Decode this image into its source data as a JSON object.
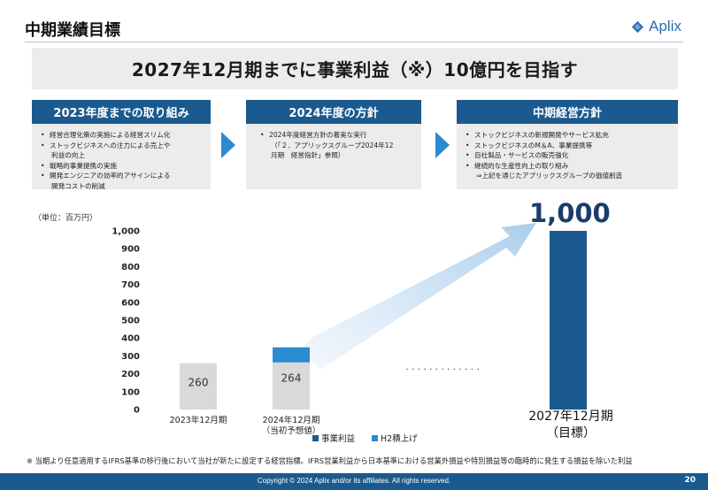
{
  "header": {
    "title": "中期業績目標",
    "logo_text": "Aplix"
  },
  "headline": "2027年12月期までに事業利益（※）10億円を目指す",
  "panels": [
    {
      "title": "2023年度までの取り組み",
      "items": [
        "経営合理化策の実施による経営スリム化",
        "ストックビジネスへの注力による売上や",
        "利益の向上",
        "戦略的事業提携の実施",
        "開発エンジニアの効率的アサインによる",
        "開発コストの削減"
      ]
    },
    {
      "title": "2024年度の方針",
      "items": [
        "2024年度経営方針の着実な実行",
        "（「２．アプリックスグループ2024年12",
        "月期　経営指針」参照）"
      ]
    },
    {
      "title": "中期経営方針",
      "items": [
        "ストックビジネスの新規開発やサービス拡充",
        "ストックビジネスのM＆A、事業提携等",
        "自社製品・サービスの販売強化",
        "継続的な生産性向上の取り組み",
        "⇒上記を通じたアプリックスグループの価値創造"
      ]
    }
  ],
  "chart_data": {
    "type": "bar",
    "unit_label": "（単位：百万円）",
    "ylim": [
      0,
      1000
    ],
    "yticks": [
      "0",
      "100",
      "200",
      "300",
      "400",
      "500",
      "600",
      "700",
      "800",
      "900",
      "1,000"
    ],
    "categories": [
      {
        "line1": "2023年12月期",
        "line2": ""
      },
      {
        "line1": "2024年12月期",
        "line2": "（当初予想値）"
      },
      {
        "line1": "2027年12月期",
        "line2": "（目標）"
      }
    ],
    "series": [
      {
        "name": "",
        "values": [
          260,
          264,
          null
        ]
      },
      {
        "name": "事業利益",
        "values": [
          null,
          null,
          1000
        ]
      },
      {
        "name": "H2積上げ",
        "values": [
          null,
          84,
          null
        ]
      }
    ],
    "data_labels": [
      "260",
      "264",
      "1,000"
    ],
    "ellipsis": ". . . . . . . . . . . . .",
    "legend": [
      "事業利益",
      "H2積上げ"
    ],
    "colors": {
      "base": "#d9d9d9",
      "profit": "#1b5a8e",
      "h2": "#2b8bd0"
    }
  },
  "footnote": "※ 当期より任意適用するIFRS基準の移行後において当社が新たに設定する経営指標。IFRS営業利益から日本基準における営業外損益や特別損益等の臨時的に発生する損益を除いた利益",
  "footer": {
    "copyright": "Copyright © 2024  Aplix and/or its affiliates. All rights reserved.",
    "page": "20"
  }
}
